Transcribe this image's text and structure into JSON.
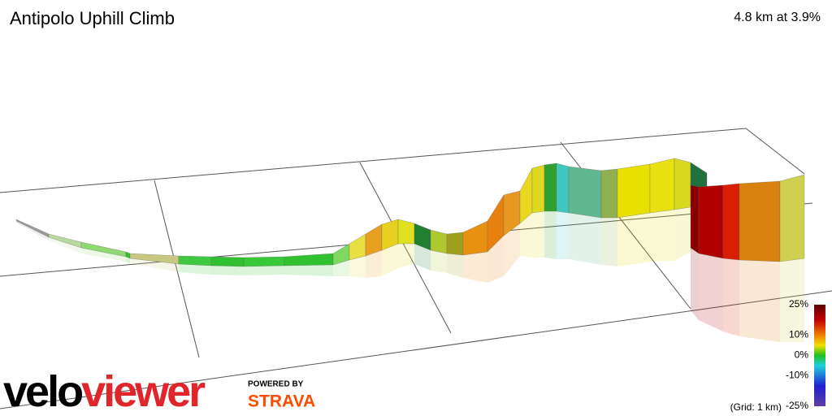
{
  "header": {
    "title": "Antipolo Uphill Climb",
    "stat": "4.8 km at 3.9%"
  },
  "legend": {
    "ticks": [
      {
        "value": 25,
        "label": "25%"
      },
      {
        "value": 10,
        "label": "10%"
      },
      {
        "value": 0,
        "label": "0%"
      },
      {
        "value": -10,
        "label": "-10%"
      },
      {
        "value": -25,
        "label": "-25%"
      }
    ],
    "note": "(Grid: 1 km)"
  },
  "logo": {
    "velo": "velo",
    "viewer": "viewer",
    "powered": "POWERED BY",
    "brand": "STRAVA"
  }
}
